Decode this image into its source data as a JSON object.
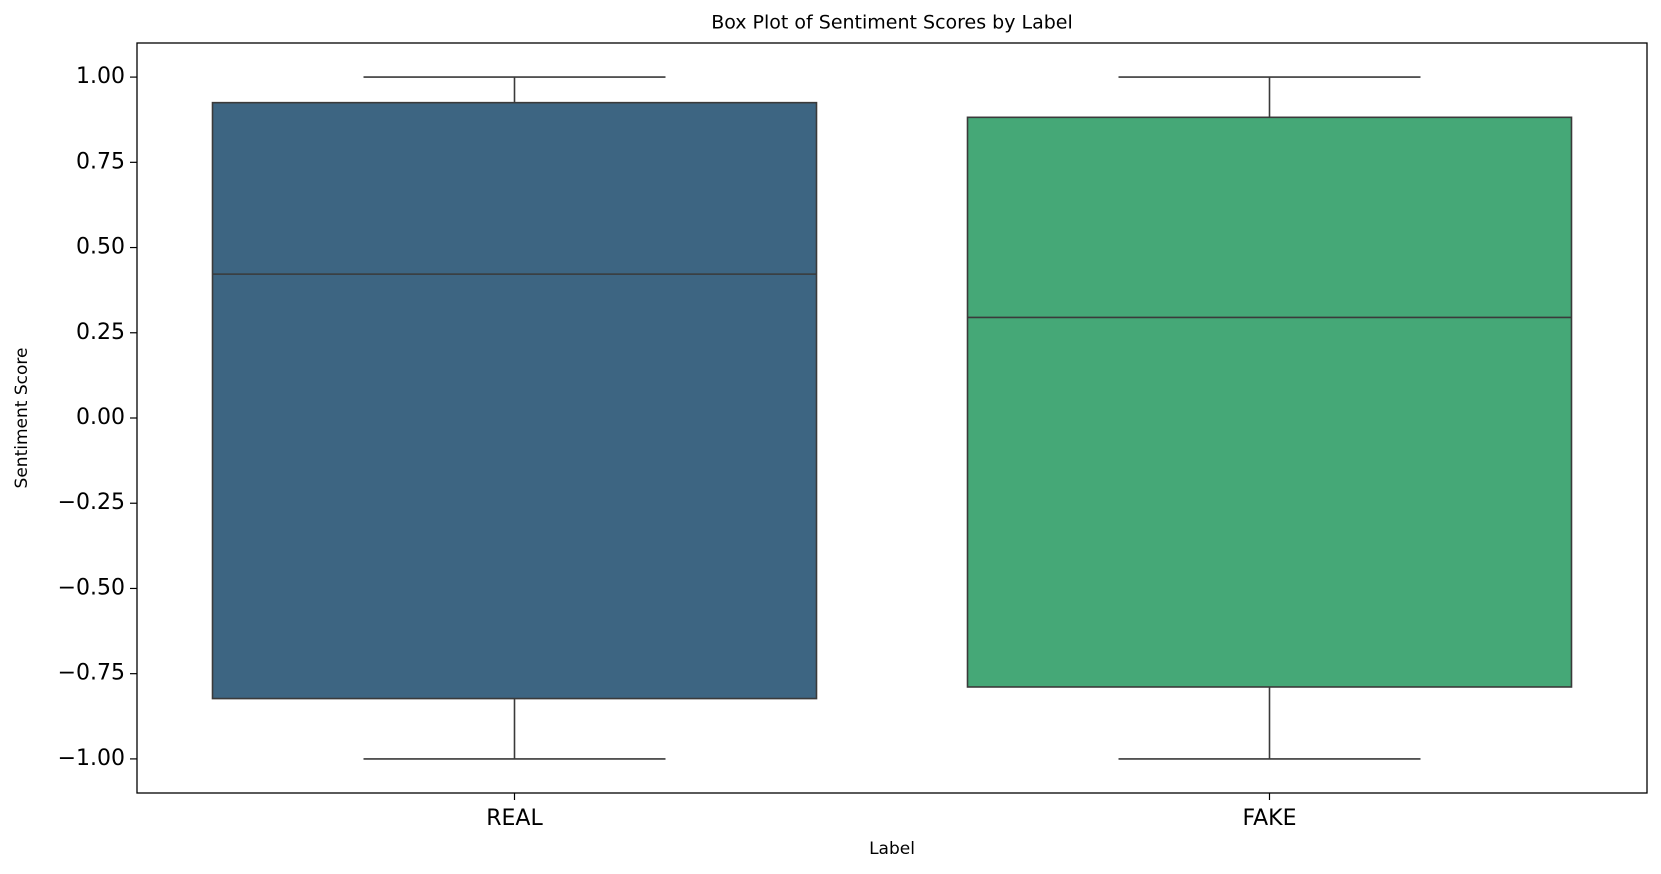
{
  "chart_data": {
    "type": "box",
    "title": "Box Plot of Sentiment Scores by Label",
    "x_label": "Label",
    "y_label": "Sentiment Score",
    "categories": [
      "REAL",
      "FAKE"
    ],
    "boxes": [
      {
        "whislo": -1.0,
        "q1": -0.823,
        "med": 0.422,
        "q3": 0.925,
        "whishi": 1.0,
        "color": "#3d6582"
      },
      {
        "whislo": -1.0,
        "q1": -0.789,
        "med": 0.295,
        "q3": 0.882,
        "whishi": 1.0,
        "color": "#45a877"
      }
    ],
    "ylim": [
      -1.1,
      1.1
    ],
    "yticks": [
      {
        "value": -1,
        "label": "−1.00"
      },
      {
        "value": -0.75,
        "label": "−0.75"
      },
      {
        "value": -0.5,
        "label": "−0.50"
      },
      {
        "value": -0.25,
        "label": "−0.25"
      },
      {
        "value": 0,
        "label": "0.00"
      },
      0.25,
      {
        "value": 0.5,
        "label": "0.50"
      },
      0.75,
      {
        "value": 1,
        "label": "1.00"
      }
    ]
  }
}
